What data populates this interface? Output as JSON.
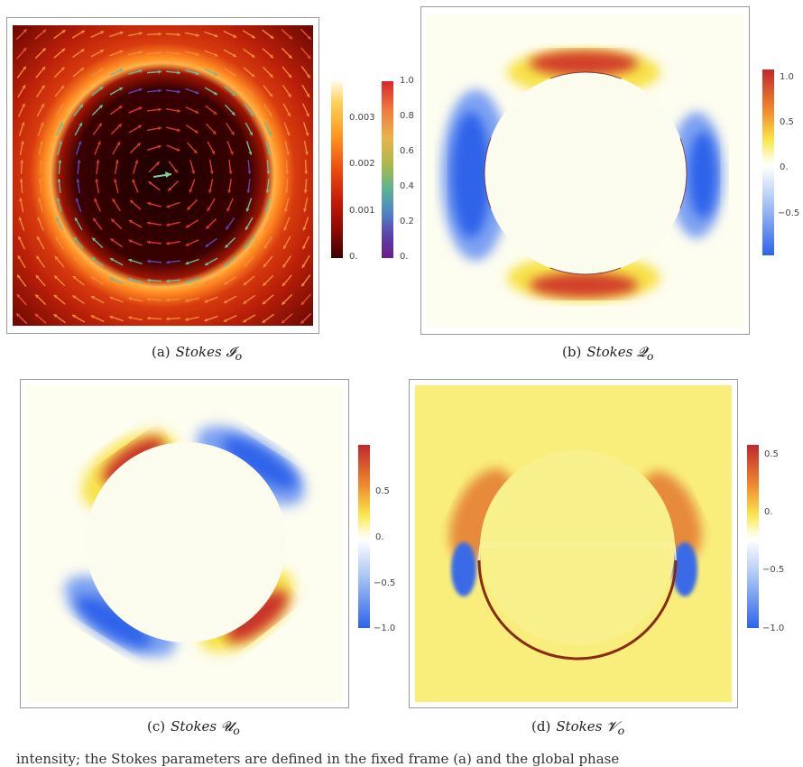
{
  "panels": [
    {
      "id": "a",
      "caption_label": "(a)",
      "caption_name": "Stokes",
      "caption_symbol": "𝓘",
      "caption_sub": "o",
      "colorbars": [
        {
          "ticks": [
            "0.003",
            "0.002",
            "0.001",
            "0."
          ],
          "max": 0.0037,
          "min": 0,
          "colors": [
            "#fffbe6",
            "#ffd15a",
            "#ff9a22",
            "#ee4a12",
            "#c51a08",
            "#8e0a02",
            "#3c0000"
          ]
        },
        {
          "ticks": [
            "1.0",
            "0.8",
            "0.6",
            "0.4",
            "0.2",
            "0."
          ],
          "max": 1,
          "min": 0,
          "colors": [
            "#d9262b",
            "#f07a3c",
            "#e9b44a",
            "#a9b74e",
            "#62b48e",
            "#4f86c6",
            "#5b3fa6",
            "#6a1f86"
          ]
        }
      ]
    },
    {
      "id": "b",
      "caption_label": "(b)",
      "caption_name": "Stokes",
      "caption_symbol": "𝓠",
      "caption_sub": "o",
      "colorbars": [
        {
          "ticks": [
            "1.0",
            "0.5",
            "0.",
            "−0.5"
          ],
          "max": 1,
          "min": -1,
          "colors": [
            "#c1272d",
            "#f08a2e",
            "#f9e64a",
            "#fffbd6",
            "#ffffff",
            "#a8c4f4",
            "#2d63ea"
          ]
        }
      ]
    },
    {
      "id": "c",
      "caption_label": "(c)",
      "caption_name": "Stokes",
      "caption_symbol": "𝓤",
      "caption_sub": "o",
      "colorbars": [
        {
          "ticks": [
            "0.5",
            "0.",
            "−0.5",
            "−1.0"
          ],
          "max": 1,
          "min": -1,
          "colors": [
            "#c1272d",
            "#f08a2e",
            "#f9e64a",
            "#fffbd6",
            "#ffffff",
            "#a8c4f4",
            "#2d63ea"
          ]
        }
      ]
    },
    {
      "id": "d",
      "caption_label": "(d)",
      "caption_name": "Stokes",
      "caption_symbol": "𝓥",
      "caption_sub": "o",
      "colorbars": [
        {
          "ticks": [
            "0.5",
            "0.",
            "−0.5",
            "−1.0"
          ],
          "max": 0.6,
          "min": -1,
          "colors": [
            "#c1272d",
            "#f08a2e",
            "#f9e64a",
            "#fffbd6",
            "#ffffff",
            "#a8c4f4",
            "#2d63ea"
          ]
        }
      ]
    }
  ],
  "body_text": "intensity; the Stokes parameters are defined in the fixed frame (a) and the global phase"
}
